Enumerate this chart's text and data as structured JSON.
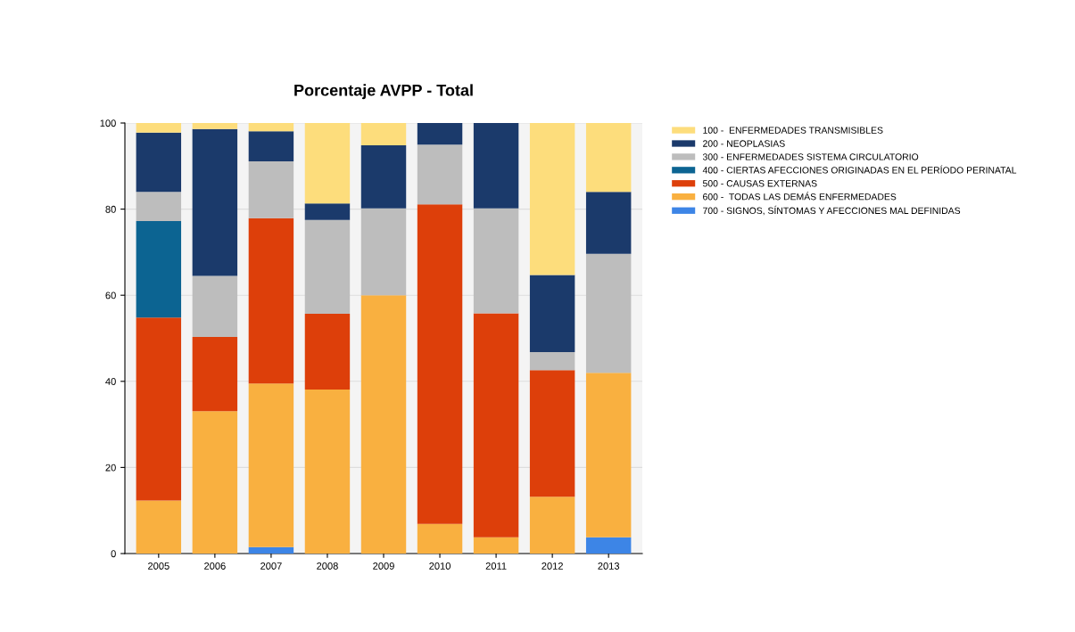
{
  "chart_data": {
    "type": "bar",
    "title": "Porcentaje AVPP - Total",
    "stacked": true,
    "categories": [
      "2005",
      "2006",
      "2007",
      "2008",
      "2009",
      "2010",
      "2011",
      "2012",
      "2013"
    ],
    "ylim": [
      0,
      100
    ],
    "yticks": [
      0,
      20,
      40,
      60,
      80,
      100
    ],
    "grid": "y",
    "legend": "right",
    "series": [
      {
        "name": "700 - SIGNOS, SÍNTOMAS Y AFECCIONES MAL DEFINIDAS",
        "color": "#3d85e6",
        "values": [
          0,
          0,
          1.5,
          0,
          0,
          0,
          0,
          0,
          3.8
        ]
      },
      {
        "name": "600 -  TODAS LAS DEMÁS ENFERMEDADES",
        "color": "#f9b040",
        "values": [
          12.3,
          33.1,
          38.0,
          38.1,
          60.0,
          6.9,
          3.8,
          13.2,
          38.2
        ]
      },
      {
        "name": "500 - CAUSAS EXTERNAS",
        "color": "#dd3f0a",
        "values": [
          42.5,
          17.2,
          38.4,
          17.6,
          0,
          74.2,
          52.0,
          29.4,
          0
        ]
      },
      {
        "name": "400 - CIERTAS AFECCIONES ORIGINADAS EN EL PERÍODO PERINATAL",
        "color": "#0c6492",
        "values": [
          22.4,
          0,
          0,
          0,
          0,
          0,
          0,
          0,
          0
        ]
      },
      {
        "name": "300 - ENFERMEDADES SISTEMA CIRCULATORIO",
        "color": "#bdbdbd",
        "values": [
          6.8,
          14.2,
          13.2,
          21.8,
          20.2,
          13.9,
          24.4,
          4.2,
          27.6
        ]
      },
      {
        "name": "200 - NEOPLASIAS",
        "color": "#1b3a6b",
        "values": [
          13.8,
          34.1,
          7.0,
          3.8,
          14.6,
          5.0,
          19.8,
          17.9,
          14.4
        ]
      },
      {
        "name": "100 -  ENFERMEDADES TRANSMISIBLES",
        "color": "#fddd7c",
        "values": [
          2.2,
          1.4,
          1.9,
          18.7,
          5.2,
          0,
          0,
          35.3,
          16.0
        ]
      }
    ]
  }
}
